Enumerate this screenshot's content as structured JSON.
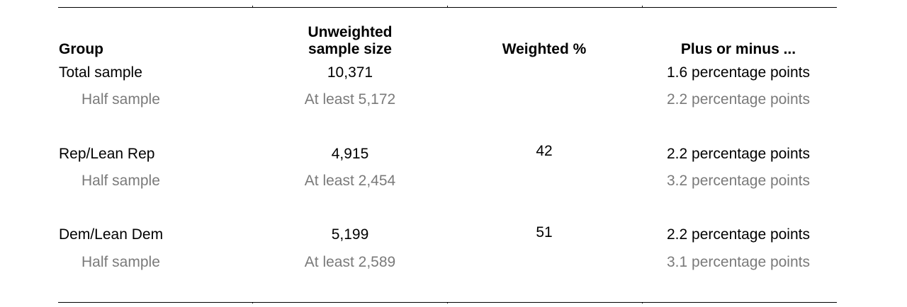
{
  "columns": {
    "group": "Group",
    "unweighted": [
      "Unweighted",
      "sample size"
    ],
    "weighted": "Weighted %",
    "moe": "Plus or minus ..."
  },
  "rows": [
    {
      "group": "Total sample",
      "unweighted": "10,371",
      "weighted": "",
      "moe": "1.6 percentage points",
      "half": {
        "group": "Half sample",
        "unweighted": "At least 5,172",
        "moe": "2.2 percentage points"
      }
    },
    {
      "group": "Rep/Lean Rep",
      "unweighted": "4,915",
      "weighted": "42",
      "moe": "2.2 percentage points",
      "half": {
        "group": "Half sample",
        "unweighted": "At least 2,454",
        "moe": "3.2 percentage points"
      }
    },
    {
      "group": "Dem/Lean Dem",
      "unweighted": "5,199",
      "weighted": "51",
      "moe": "2.2 percentage points",
      "half": {
        "group": "Half sample",
        "unweighted": "At least 2,589",
        "moe": "3.1 percentage points"
      }
    }
  ],
  "colors": {
    "text": "#000000",
    "muted": "#7a7a7a",
    "rule": "#000000"
  }
}
